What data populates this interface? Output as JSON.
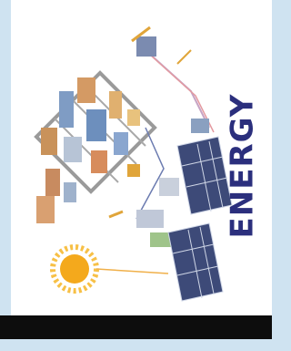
{
  "cover": {
    "title": "ENERGY"
  }
}
